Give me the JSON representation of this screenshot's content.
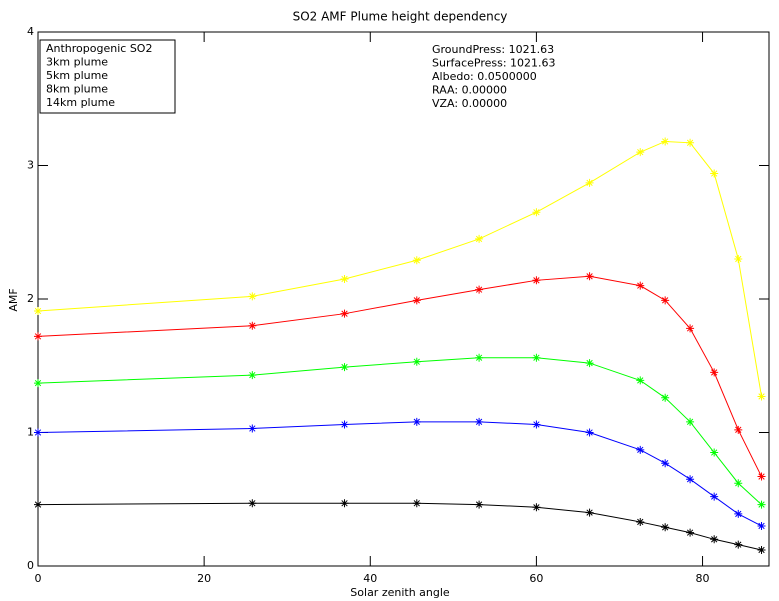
{
  "chart_data": {
    "type": "line",
    "title": "SO2 AMF Plume height dependency",
    "x_label": "Solar zenith angle",
    "y_label": "AMF",
    "x": [
      0,
      25.8,
      36.9,
      45.6,
      53.1,
      60,
      66.4,
      72.5,
      75.5,
      78.5,
      81.4,
      84.3,
      87.1
    ],
    "series": [
      {
        "name": "Anthropogenic SO2",
        "color": "#000000",
        "values": [
          0.46,
          0.47,
          0.47,
          0.47,
          0.46,
          0.44,
          0.4,
          0.33,
          0.29,
          0.25,
          0.2,
          0.16,
          0.12
        ]
      },
      {
        "name": "3km plume",
        "color": "#0000ff",
        "values": [
          1.0,
          1.03,
          1.06,
          1.08,
          1.08,
          1.06,
          1.0,
          0.87,
          0.77,
          0.65,
          0.52,
          0.39,
          0.3
        ]
      },
      {
        "name": "5km plume",
        "color": "#00ff00",
        "values": [
          1.37,
          1.43,
          1.49,
          1.53,
          1.56,
          1.56,
          1.52,
          1.39,
          1.26,
          1.08,
          0.85,
          0.62,
          0.46
        ]
      },
      {
        "name": "8km plume",
        "color": "#ff0000",
        "values": [
          1.72,
          1.8,
          1.89,
          1.99,
          2.07,
          2.14,
          2.17,
          2.1,
          1.99,
          1.78,
          1.45,
          1.02,
          0.67
        ]
      },
      {
        "name": "14km plume",
        "color": "#ffff00",
        "values": [
          1.91,
          2.02,
          2.15,
          2.29,
          2.45,
          2.65,
          2.87,
          3.1,
          3.18,
          3.17,
          2.94,
          2.3,
          1.27
        ]
      }
    ],
    "annotations": [
      "GroundPress: 1021.63",
      "SurfacePress: 1021.63",
      "Albedo: 0.0500000",
      "RAA: 0.00000",
      "VZA: 0.00000"
    ],
    "xlim": [
      0,
      88
    ],
    "ylim": [
      0,
      4
    ],
    "xticks": [
      0,
      20,
      40,
      60,
      80
    ],
    "yticks": [
      0,
      1,
      2,
      3,
      4
    ],
    "legend": "upper-left"
  }
}
